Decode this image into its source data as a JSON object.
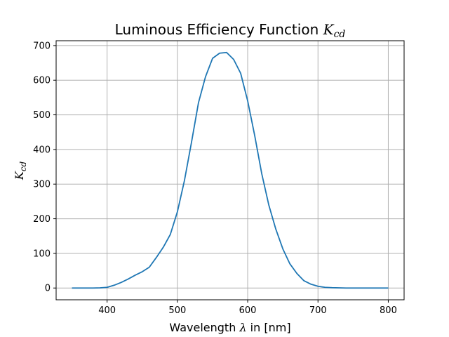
{
  "chart_data": {
    "type": "line",
    "title": "Luminous Efficiency Function",
    "title_symbol": "K",
    "title_symbol_sub": "cd",
    "xlabel": "Wavelength",
    "xlabel_symbol": "λ",
    "xlabel_suffix": "in [nm]",
    "ylabel_symbol": "K",
    "ylabel_symbol_sub": "cd",
    "xlim": [
      327.5,
      822.5
    ],
    "ylim": [
      -34,
      714
    ],
    "xticks": [
      400,
      500,
      600,
      700,
      800
    ],
    "yticks": [
      0,
      100,
      200,
      300,
      400,
      500,
      600,
      700
    ],
    "grid": true,
    "line_color": "#1f77b4",
    "series": [
      {
        "x": [
          350,
          360,
          370,
          380,
          390,
          400,
          410,
          420,
          430,
          440,
          450,
          460,
          470,
          480,
          490,
          500,
          510,
          520,
          530,
          540,
          550,
          560,
          570,
          580,
          590,
          600,
          610,
          620,
          630,
          640,
          650,
          660,
          670,
          680,
          690,
          700,
          710,
          720,
          730,
          740,
          750,
          760,
          770,
          780,
          790,
          800
        ],
        "y": [
          0,
          0,
          0,
          0,
          0.5,
          2,
          8,
          16,
          26,
          37,
          47,
          60,
          88,
          118,
          155,
          220,
          310,
          420,
          535,
          610,
          663,
          678,
          680,
          660,
          620,
          540,
          440,
          330,
          240,
          170,
          113,
          70,
          42,
          21,
          11,
          5,
          2,
          1,
          0.5,
          0,
          0,
          0,
          0,
          0,
          0,
          0
        ]
      }
    ]
  }
}
